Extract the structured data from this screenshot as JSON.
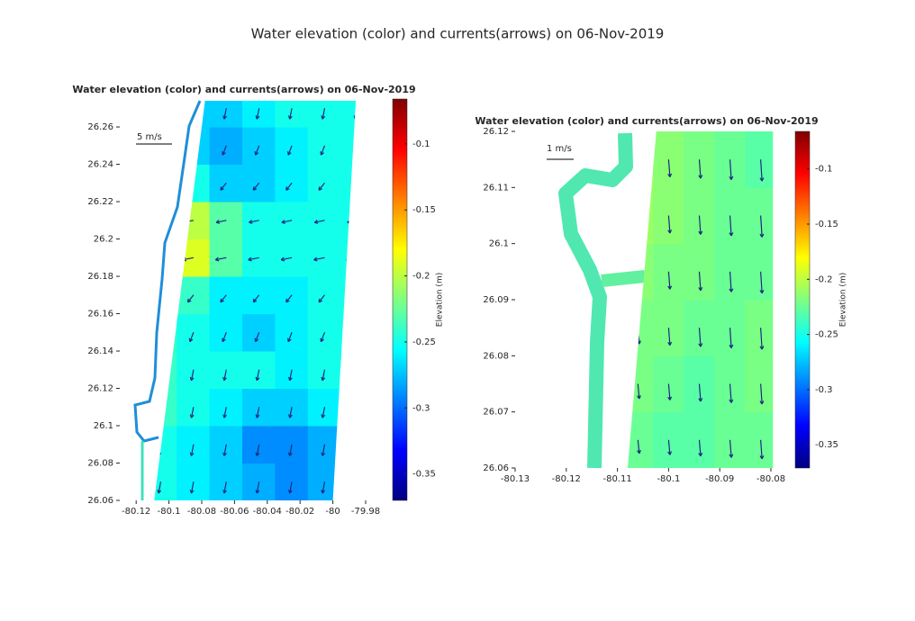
{
  "figure_title": "Water elevation (color) and currents(arrows) on 06-Nov-2019",
  "chart_data": [
    {
      "type": "quiver",
      "title": "Water elevation (color) and currents(arrows) on 06-Nov-2019",
      "xlim": [
        -80.13,
        -79.98
      ],
      "ylim": [
        26.06,
        26.274
      ],
      "xticks": [
        -80.12,
        -80.1,
        -80.08,
        -80.06,
        -80.04,
        -80.02,
        -80,
        -79.98
      ],
      "yticks": [
        26.06,
        26.08,
        26.1,
        26.12,
        26.14,
        26.16,
        26.18,
        26.2,
        26.22,
        26.24,
        26.26
      ],
      "domain_lon": [
        -80.078,
        -79.986,
        -80.0,
        -80.109
      ],
      "domain_lat": [
        26.274,
        26.274,
        26.06,
        26.06
      ],
      "lon": [
        -80.105,
        -80.085,
        -80.065,
        -80.045,
        -80.025,
        -80.005,
        -79.985
      ],
      "lat": [
        26.07,
        26.09,
        26.11,
        26.13,
        26.15,
        26.17,
        26.19,
        26.21,
        26.23,
        26.25,
        26.27
      ],
      "elevation": [
        [
          -0.25,
          -0.26,
          -0.27,
          -0.28,
          -0.29,
          -0.28,
          -0.27
        ],
        [
          -0.25,
          -0.26,
          -0.27,
          -0.29,
          -0.29,
          -0.28,
          -0.27
        ],
        [
          -0.24,
          -0.25,
          -0.26,
          -0.27,
          -0.27,
          -0.26,
          -0.26
        ],
        [
          -0.24,
          -0.25,
          -0.25,
          -0.25,
          -0.26,
          -0.25,
          -0.25
        ],
        [
          -0.24,
          -0.25,
          -0.26,
          -0.27,
          -0.26,
          -0.25,
          -0.25
        ],
        [
          -0.23,
          -0.24,
          -0.26,
          -0.26,
          -0.26,
          -0.25,
          -0.25
        ],
        [
          -0.2,
          -0.19,
          -0.23,
          -0.25,
          -0.25,
          -0.25,
          -0.25
        ],
        [
          -0.22,
          -0.2,
          -0.23,
          -0.25,
          -0.25,
          -0.25,
          -0.25
        ],
        [
          -0.25,
          -0.25,
          -0.27,
          -0.27,
          -0.26,
          -0.25,
          -0.25
        ],
        [
          -0.26,
          -0.27,
          -0.28,
          -0.27,
          -0.26,
          -0.25,
          -0.25
        ],
        [
          -0.26,
          -0.27,
          -0.27,
          -0.26,
          -0.25,
          -0.25,
          -0.25
        ]
      ],
      "u": [
        [
          -0.3,
          -0.3,
          -0.3,
          -0.3,
          -0.3,
          -0.3,
          -0.3
        ],
        [
          -0.3,
          -0.3,
          -0.3,
          -0.3,
          -0.3,
          -0.3,
          -0.3
        ],
        [
          -0.3,
          -0.3,
          -0.3,
          -0.3,
          -0.3,
          -0.3,
          -0.3
        ],
        [
          -0.3,
          -0.3,
          -0.3,
          -0.3,
          -0.3,
          -0.3,
          -0.3
        ],
        [
          -0.5,
          -0.5,
          -0.5,
          -0.5,
          -0.5,
          -0.5,
          -0.5
        ],
        [
          -0.8,
          -0.8,
          -0.8,
          -0.8,
          -0.8,
          -0.8,
          -0.8
        ],
        [
          -1.5,
          -1.5,
          -1.5,
          -1.5,
          -1.5,
          -1.5,
          -1.5
        ],
        [
          -1.4,
          -1.4,
          -1.4,
          -1.4,
          -1.4,
          -1.4,
          -1.4
        ],
        [
          -0.8,
          -0.8,
          -0.8,
          -0.8,
          -0.8,
          -0.8,
          -0.8
        ],
        [
          -0.5,
          -0.5,
          -0.5,
          -0.5,
          -0.5,
          -0.5,
          -0.5
        ],
        [
          -0.3,
          -0.3,
          -0.3,
          -0.3,
          -0.3,
          -0.3,
          -0.3
        ]
      ],
      "v": [
        [
          -1.6,
          -1.6,
          -1.6,
          -1.6,
          -1.6,
          -1.6,
          -1.6
        ],
        [
          -1.6,
          -1.6,
          -1.6,
          -1.6,
          -1.6,
          -1.6,
          -1.6
        ],
        [
          -1.5,
          -1.5,
          -1.5,
          -1.5,
          -1.5,
          -1.5,
          -1.5
        ],
        [
          -1.5,
          -1.5,
          -1.5,
          -1.5,
          -1.5,
          -1.5,
          -1.5
        ],
        [
          -1.3,
          -1.3,
          -1.3,
          -1.3,
          -1.3,
          -1.3,
          -1.3
        ],
        [
          -1.0,
          -1.0,
          -1.0,
          -1.0,
          -1.0,
          -1.0,
          -1.0
        ],
        [
          -0.3,
          -0.3,
          -0.3,
          -0.3,
          -0.3,
          -0.3,
          -0.3
        ],
        [
          -0.3,
          -0.3,
          -0.3,
          -0.3,
          -0.3,
          -0.3,
          -0.3
        ],
        [
          -1.0,
          -1.0,
          -1.0,
          -1.0,
          -1.0,
          -1.0,
          -1.0
        ],
        [
          -1.3,
          -1.3,
          -1.3,
          -1.3,
          -1.3,
          -1.3,
          -1.3
        ],
        [
          -1.5,
          -1.5,
          -1.5,
          -1.5,
          -1.5,
          -1.5,
          -1.5
        ]
      ],
      "scale": 5,
      "scale_label": "5 m/s",
      "clim": [
        -0.37,
        -0.066
      ],
      "cticks": [
        -0.1,
        -0.15,
        -0.2,
        -0.25,
        -0.3,
        -0.35
      ],
      "colorbar_label": "Elevation (m)",
      "colormap": "jet"
    },
    {
      "type": "quiver",
      "title": "Water elevation (color) and currents(arrows) on 06-Nov-2019",
      "xlim": [
        -80.13,
        -80.08
      ],
      "ylim": [
        26.06,
        26.12
      ],
      "xticks": [
        -80.13,
        -80.12,
        -80.11,
        -80.1,
        -80.09,
        -80.08
      ],
      "yticks": [
        26.06,
        26.07,
        26.08,
        26.09,
        26.1,
        26.11,
        26.12
      ],
      "domain_lon": [
        -80.1024,
        -80.0796,
        -80.0796,
        -80.108
      ],
      "domain_lat": [
        26.12,
        26.12,
        26.06,
        26.06
      ],
      "lon": [
        -80.106,
        -80.1,
        -80.094,
        -80.088,
        -80.082
      ],
      "lat": [
        26.065,
        26.075,
        26.085,
        26.095,
        26.105,
        26.115
      ],
      "elevation": [
        [
          -0.225,
          -0.23,
          -0.23,
          -0.225,
          -0.225
        ],
        [
          -0.22,
          -0.225,
          -0.23,
          -0.225,
          -0.22
        ],
        [
          -0.22,
          -0.22,
          -0.225,
          -0.225,
          -0.22
        ],
        [
          -0.215,
          -0.22,
          -0.22,
          -0.225,
          -0.225
        ],
        [
          -0.21,
          -0.215,
          -0.22,
          -0.225,
          -0.225
        ],
        [
          -0.205,
          -0.215,
          -0.22,
          -0.225,
          -0.23
        ]
      ],
      "u": [
        [
          0.05,
          0.05,
          0.05,
          0.05,
          0.05
        ],
        [
          0.05,
          0.05,
          0.05,
          0.05,
          0.05
        ],
        [
          0.05,
          0.05,
          0.05,
          0.05,
          0.05
        ],
        [
          0.05,
          0.05,
          0.05,
          0.05,
          0.05
        ],
        [
          0.05,
          0.05,
          0.05,
          0.05,
          0.05
        ],
        [
          0.05,
          0.05,
          0.05,
          0.05,
          0.05
        ]
      ],
      "v": [
        [
          -0.5,
          -0.55,
          -0.6,
          -0.65,
          -0.7
        ],
        [
          -0.55,
          -0.6,
          -0.65,
          -0.7,
          -0.75
        ],
        [
          -0.6,
          -0.65,
          -0.7,
          -0.75,
          -0.8
        ],
        [
          -0.6,
          -0.65,
          -0.7,
          -0.75,
          -0.8
        ],
        [
          -0.6,
          -0.65,
          -0.7,
          -0.75,
          -0.8
        ],
        [
          -0.6,
          -0.65,
          -0.7,
          -0.75,
          -0.8
        ]
      ],
      "scale": 1,
      "scale_label": "1 m/s",
      "clim": [
        -0.371,
        -0.066
      ],
      "cticks": [
        -0.1,
        -0.15,
        -0.2,
        -0.25,
        -0.3,
        -0.35
      ],
      "colorbar_label": "Elevation (m)",
      "colormap": "jet"
    }
  ]
}
